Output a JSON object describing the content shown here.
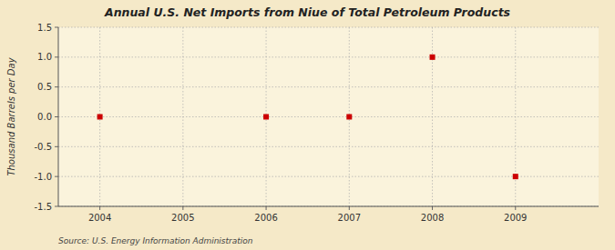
{
  "chart_data": {
    "type": "scatter",
    "title": "Annual U.S. Net Imports from Niue of Total Petroleum Products",
    "y_label": "Thousand Barrels per Day",
    "source": "Source: U.S. Energy Information Administration",
    "x": [
      2004,
      2006,
      2007,
      2008,
      2009
    ],
    "values": [
      0,
      0,
      0,
      1.0,
      -1.0
    ],
    "color": "#CC0000",
    "marker": "square",
    "xlim": [
      2003.5,
      2010.0
    ],
    "ylim": [
      -1.5,
      1.5
    ],
    "xticks": [
      2004,
      2005,
      2006,
      2007,
      2008,
      2009
    ],
    "yticks": [
      -1.5,
      {
        "value": -1.0,
        "label": "-1.0"
      },
      -0.5,
      {
        "value": 0.0,
        "label": "0.0"
      },
      0.5,
      {
        "value": 1.0,
        "label": "1.0"
      },
      1.5
    ],
    "grid": true
  }
}
